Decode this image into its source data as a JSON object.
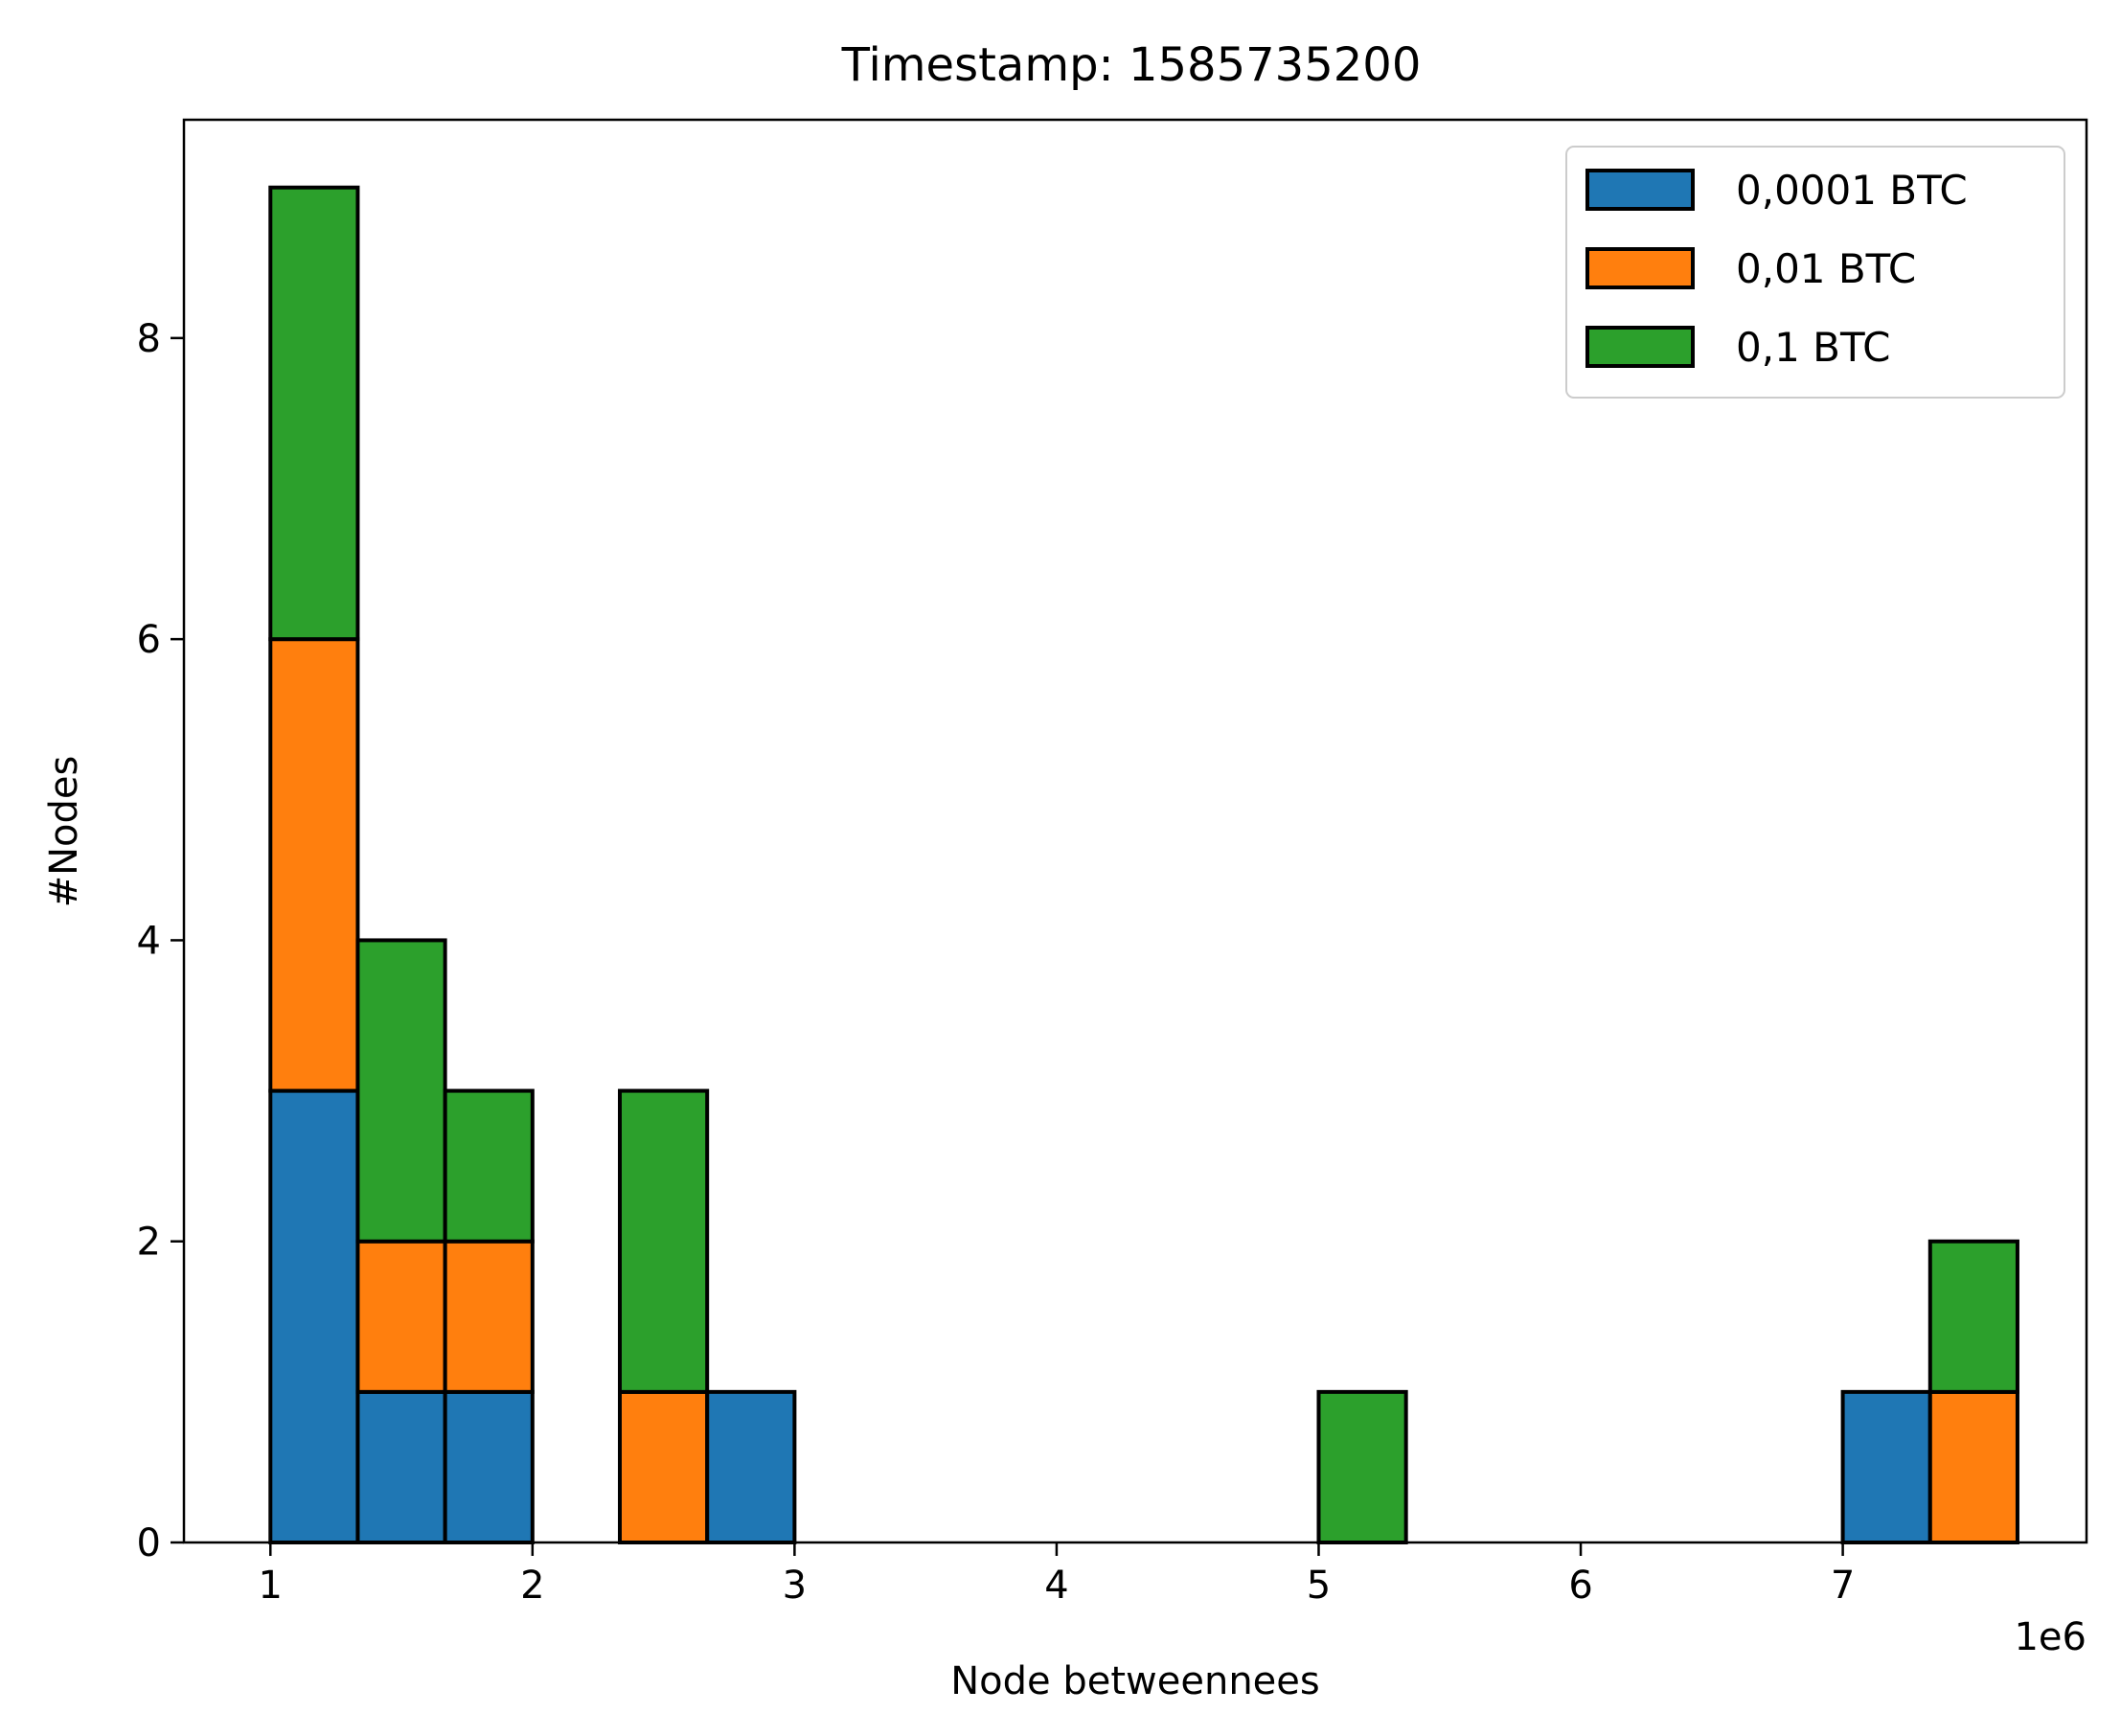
{
  "chart_data": {
    "type": "bar",
    "title": "Timestamp: 1585735200",
    "xlabel": "Node betweennees",
    "ylabel": "#Nodes",
    "x_offset_label": "1e6",
    "xlim": [
      0.67,
      7.93
    ],
    "ylim": [
      0,
      9.45
    ],
    "x_ticks": [
      1,
      2,
      3,
      4,
      5,
      6,
      7
    ],
    "y_ticks": [
      0,
      2,
      4,
      6,
      8
    ],
    "bin_width": 0.3333,
    "bin_starts": [
      1.0,
      1.3333,
      1.6667,
      2.3333,
      2.6667,
      5.0,
      7.0,
      7.3333
    ],
    "stacked": true,
    "grid": false,
    "legend_position": "top-right",
    "series": [
      {
        "name": "0,0001 BTC",
        "color": "#1f77b4",
        "values": [
          3,
          1,
          1,
          0,
          1,
          0,
          1,
          0
        ]
      },
      {
        "name": "0,01 BTC",
        "color": "#ff7f0e",
        "values": [
          3,
          1,
          1,
          1,
          0,
          0,
          0,
          1
        ]
      },
      {
        "name": "0,1 BTC",
        "color": "#2ca02c",
        "values": [
          3,
          2,
          1,
          2,
          0,
          1,
          0,
          1
        ]
      }
    ]
  }
}
